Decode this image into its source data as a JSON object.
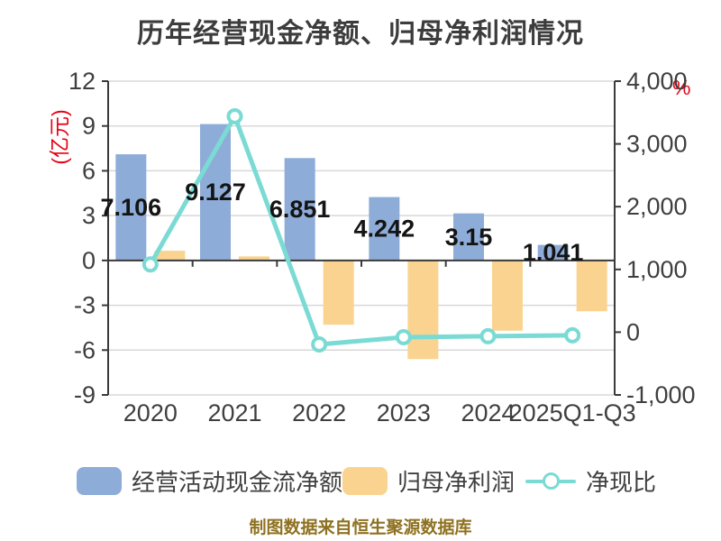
{
  "title": "历年经营现金净额、归母净利润情况",
  "caption": "制图数据来自恒生聚源数据库",
  "colors": {
    "background": "#FFFFFF",
    "title_text": "#3C3C3C",
    "axis_text": "#3F3F3F",
    "axis_line": "#3A3A3A",
    "grid_line": "#D8D8D8",
    "bar_blue": "#8EACD8",
    "bar_orange": "#F9D38F",
    "line_cyan": "#7BDBD4",
    "dot_fill": "#FFFFFF",
    "unit_red": "#E60012",
    "value_label": "#141414",
    "caption_gold": "#8E7120"
  },
  "chart_data": {
    "type": "bar",
    "subtype": "grouped-bars-with-line-combo",
    "title": "历年经营现金净额、归母净利润情况",
    "categories": [
      "2020",
      "2021",
      "2022",
      "2023",
      "2024",
      "2025Q1-Q3"
    ],
    "series": [
      {
        "name": "经营活动现金流净额",
        "type": "bar",
        "axis": "left",
        "values": [
          7.106,
          9.127,
          6.851,
          4.242,
          3.15,
          1.041
        ],
        "labels": [
          "7.106",
          "9.127",
          "6.851",
          "4.242",
          "3.15",
          "1.041"
        ]
      },
      {
        "name": "归母净利润",
        "type": "bar",
        "axis": "left",
        "values": [
          0.65,
          0.27,
          -4.3,
          -6.6,
          -4.7,
          -3.4
        ],
        "labels": []
      },
      {
        "name": "净现比",
        "type": "line",
        "axis": "right",
        "values": [
          1080,
          3440,
          -195,
          -80,
          -65,
          -50
        ]
      }
    ],
    "left_axis": {
      "unit": "(亿元)",
      "min": -9,
      "max": 12,
      "tick_values": [
        12,
        9,
        6,
        3,
        0,
        -3,
        -6,
        -9
      ],
      "ticks": [
        "12",
        "9",
        "6",
        "3",
        "0",
        "-3",
        "-6",
        "-9"
      ]
    },
    "right_axis": {
      "unit": "%",
      "min": -1000,
      "max": 4000,
      "tick_values": [
        4000,
        3000,
        2000,
        1000,
        0,
        -1000
      ],
      "ticks": [
        "4,000",
        "3,000",
        "2,000",
        "1,000",
        "0",
        "-1,000"
      ]
    },
    "grid": true,
    "legend_position": "bottom"
  }
}
